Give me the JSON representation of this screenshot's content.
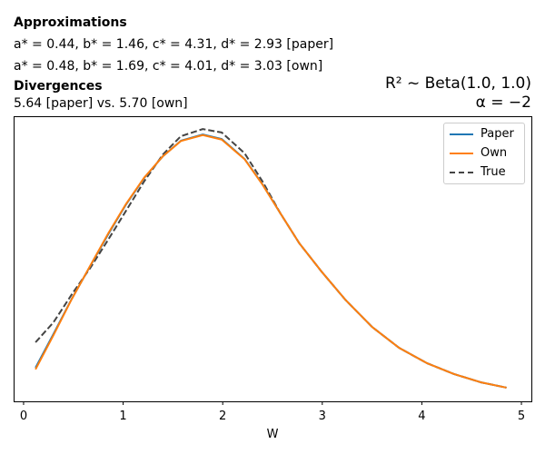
{
  "header": {
    "approx_title": "Approximations",
    "paper_line": "a* = 0.44, b* = 1.46, c* = 4.31, d* = 2.93 [paper]",
    "own_line": "a* = 0.48, b* = 1.69, c* = 4.01, d* = 3.03 [own]",
    "div_title": "Divergences",
    "div_line": "5.64 [paper] vs. 5.70 [own]",
    "prior_line": "R² ~  Beta(1.0, 1.0)",
    "alpha_line": "α = −2"
  },
  "chart_data": {
    "type": "line",
    "xlabel": "W",
    "ylabel": "",
    "xlim": [
      -0.1,
      5.1
    ],
    "ylim": [
      0,
      1
    ],
    "xticks": [
      "0",
      "1",
      "2",
      "3",
      "4",
      "5"
    ],
    "legend_position": "top-right",
    "x": [
      0.12,
      0.3,
      0.48,
      0.67,
      0.85,
      1.03,
      1.21,
      1.4,
      1.58,
      1.8,
      1.99,
      2.22,
      2.4,
      2.58,
      2.77,
      3.0,
      3.23,
      3.5,
      3.77,
      4.05,
      4.32,
      4.59,
      4.85
    ],
    "series": [
      {
        "name": "Paper",
        "color": "#1f77b4",
        "dash": false,
        "values": [
          0.118,
          0.236,
          0.357,
          0.475,
          0.586,
          0.691,
          0.783,
          0.86,
          0.914,
          0.936,
          0.92,
          0.85,
          0.761,
          0.659,
          0.554,
          0.452,
          0.357,
          0.261,
          0.188,
          0.134,
          0.096,
          0.067,
          0.048
        ]
      },
      {
        "name": "Own",
        "color": "#ff7f0e",
        "dash": false,
        "values": [
          0.112,
          0.232,
          0.356,
          0.476,
          0.589,
          0.693,
          0.784,
          0.86,
          0.913,
          0.934,
          0.918,
          0.849,
          0.76,
          0.659,
          0.554,
          0.452,
          0.357,
          0.261,
          0.188,
          0.134,
          0.096,
          0.067,
          0.048
        ]
      },
      {
        "name": "True",
        "color": "#444444",
        "dash": true,
        "values": [
          0.207,
          0.277,
          0.373,
          0.468,
          0.567,
          0.669,
          0.771,
          0.866,
          0.93,
          0.955,
          0.943,
          0.87,
          0.771,
          0.659,
          0.554,
          0.452,
          0.357,
          0.261,
          0.188,
          0.134,
          0.096,
          0.067,
          0.048
        ]
      }
    ]
  }
}
